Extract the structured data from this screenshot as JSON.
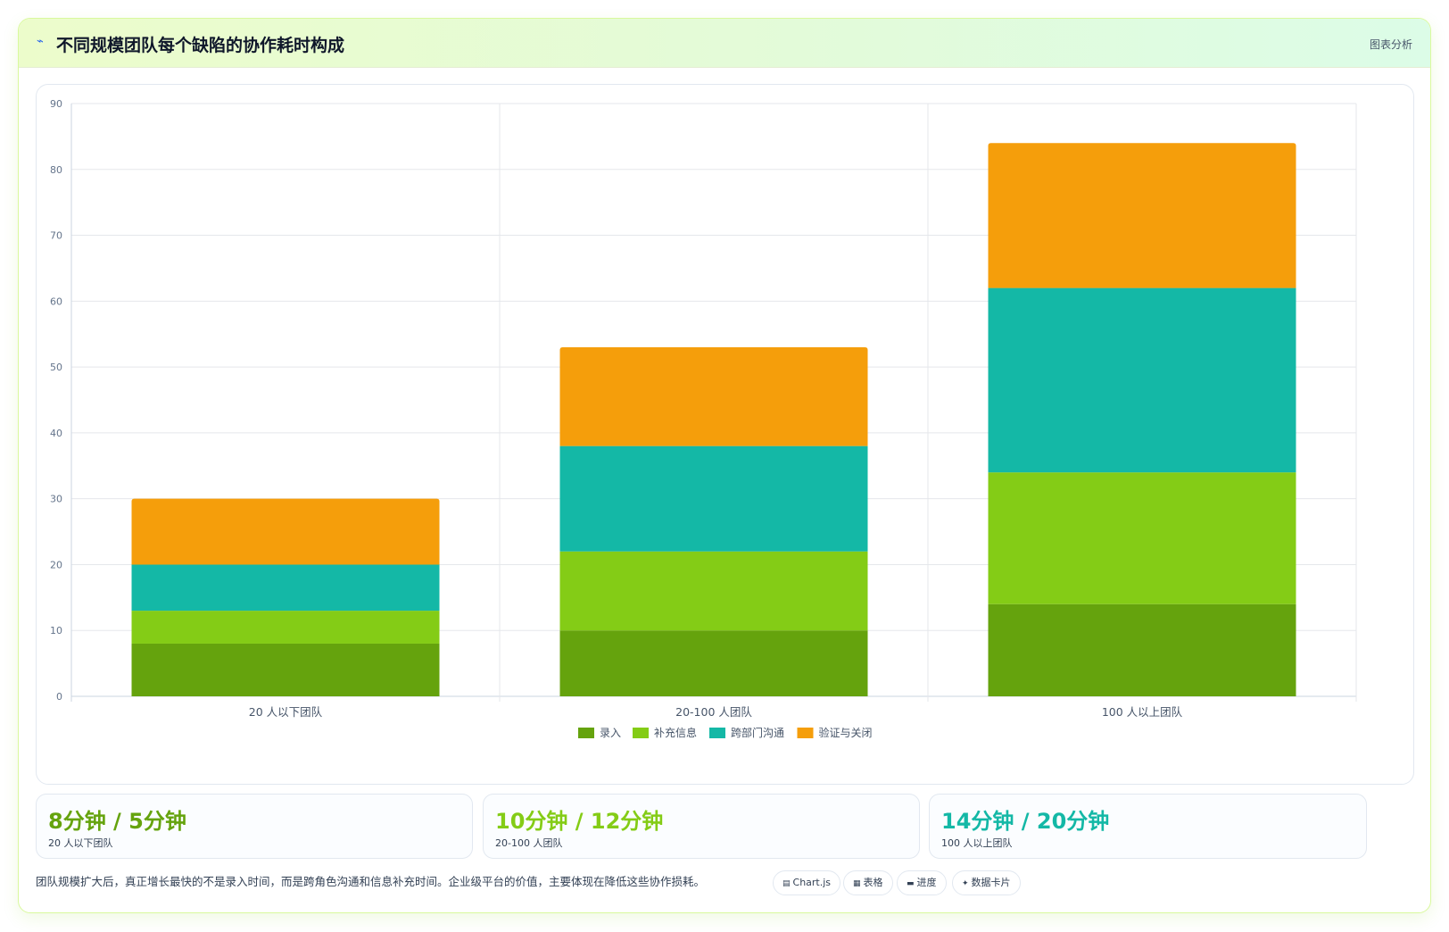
{
  "header": {
    "icon": "wave-icon",
    "title": "不同规模团队每个缺陷的协作耗时构成",
    "tag": "图表分析"
  },
  "chart_data": {
    "type": "bar",
    "stacked": true,
    "categories": [
      "20 人以下团队",
      "20-100 人团队",
      "100 人以上团队"
    ],
    "series": [
      {
        "name": "录入",
        "color": "#65a30d",
        "values": [
          8,
          10,
          14
        ]
      },
      {
        "name": "补充信息",
        "color": "#84cc16",
        "values": [
          5,
          12,
          20
        ]
      },
      {
        "name": "跨部门沟通",
        "color": "#14b8a6",
        "values": [
          7,
          16,
          28
        ]
      },
      {
        "name": "验证与关闭",
        "color": "#f59e0b",
        "values": [
          10,
          15,
          22
        ]
      }
    ],
    "ylim": [
      0,
      90
    ],
    "yticks": [
      "0",
      "10",
      "20",
      "30",
      "40",
      "50",
      "60",
      "70",
      "80",
      "90"
    ],
    "grid": true,
    "legend_position": "bottom"
  },
  "stats": [
    {
      "value": "8分钟 / 5分钟",
      "label": "20 人以下团队",
      "color": "#65a30d"
    },
    {
      "value": "10分钟 / 12分钟",
      "label": "20-100 人团队",
      "color": "#84cc16"
    },
    {
      "value": "14分钟 / 20分钟",
      "label": "100 人以上团队",
      "color": "#14b8a6"
    }
  ],
  "footnote": "团队规模扩大后，真正增长最快的不是录入时间，而是跨角色沟通和信息补充时间。企业级平台的价值，主要体现在降低这些协作损耗。",
  "chips": [
    {
      "icon": "chart-icon",
      "glyph": "▤",
      "label": "Chart.js"
    },
    {
      "icon": "table-icon",
      "glyph": "▦",
      "label": "表格"
    },
    {
      "icon": "progress-icon",
      "glyph": "▬",
      "label": "进度"
    },
    {
      "icon": "sparkle-icon",
      "glyph": "✦",
      "label": "数据卡片"
    }
  ]
}
